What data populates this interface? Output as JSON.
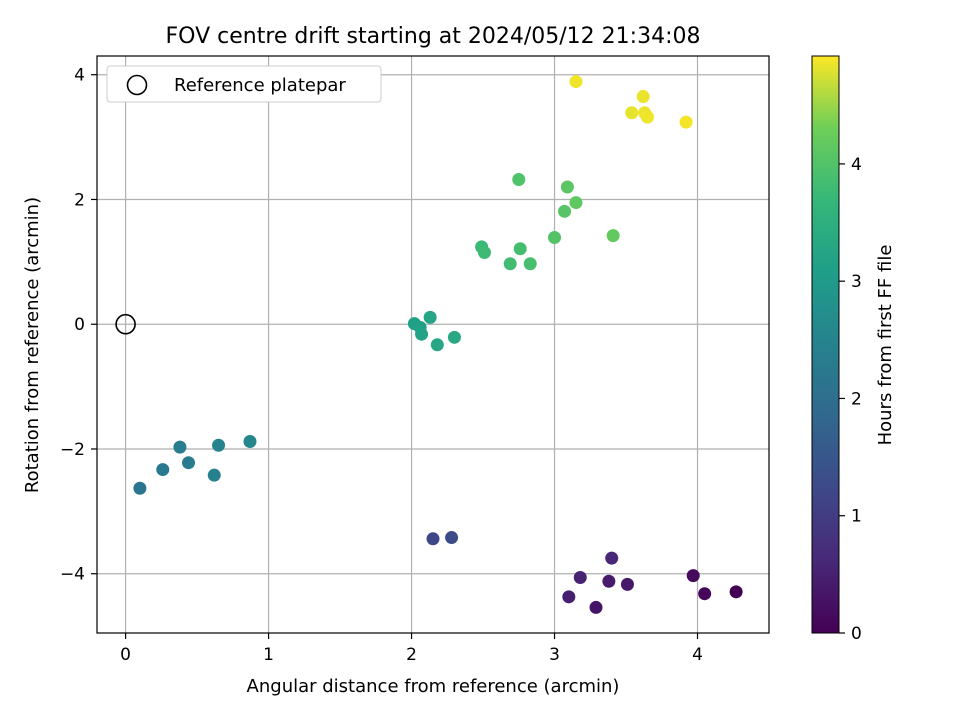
{
  "chart_data": {
    "type": "scatter",
    "title": "FOV centre drift starting at 2024/05/12 21:34:08",
    "xlabel": "Angular distance from reference (arcmin)",
    "ylabel": "Rotation from reference (arcmin)",
    "xlim": [
      -0.2,
      4.5
    ],
    "ylim": [
      -4.95,
      4.3
    ],
    "xticks": [
      0,
      1,
      2,
      3,
      4
    ],
    "yticks": [
      -4,
      -2,
      0,
      2,
      4
    ],
    "grid": true,
    "legend": {
      "placement": "top-left",
      "entries": [
        "Reference platepar"
      ]
    },
    "reference_point": {
      "x": 0,
      "y": 0,
      "label": "Reference platepar"
    },
    "colorbar": {
      "label": "Hours from first FF file",
      "range": [
        0,
        4.92
      ],
      "ticks": [
        0,
        1,
        2,
        3,
        4
      ],
      "colormap": "viridis"
    },
    "points": [
      {
        "x": 4.27,
        "y": -4.29,
        "hours": 0.02
      },
      {
        "x": 4.05,
        "y": -4.32,
        "hours": 0.08
      },
      {
        "x": 3.97,
        "y": -4.03,
        "hours": 0.14
      },
      {
        "x": 3.29,
        "y": -4.54,
        "hours": 0.3
      },
      {
        "x": 3.51,
        "y": -4.17,
        "hours": 0.36
      },
      {
        "x": 3.38,
        "y": -4.12,
        "hours": 0.42
      },
      {
        "x": 3.1,
        "y": -4.37,
        "hours": 0.48
      },
      {
        "x": 3.18,
        "y": -4.06,
        "hours": 0.54
      },
      {
        "x": 3.4,
        "y": -3.75,
        "hours": 0.6
      },
      {
        "x": 2.15,
        "y": -3.44,
        "hours": 1.22
      },
      {
        "x": 2.28,
        "y": -3.42,
        "hours": 1.28
      },
      {
        "x": 0.1,
        "y": -2.63,
        "hours": 2.18
      },
      {
        "x": 0.26,
        "y": -2.33,
        "hours": 2.24
      },
      {
        "x": 0.44,
        "y": -2.22,
        "hours": 2.3
      },
      {
        "x": 0.38,
        "y": -1.97,
        "hours": 2.36
      },
      {
        "x": 0.62,
        "y": -2.42,
        "hours": 2.42
      },
      {
        "x": 0.65,
        "y": -1.94,
        "hours": 2.48
      },
      {
        "x": 0.87,
        "y": -1.88,
        "hours": 2.54
      },
      {
        "x": 2.02,
        "y": 0.01,
        "hours": 3.12
      },
      {
        "x": 2.06,
        "y": -0.05,
        "hours": 3.16
      },
      {
        "x": 2.07,
        "y": -0.16,
        "hours": 3.2
      },
      {
        "x": 2.13,
        "y": 0.11,
        "hours": 3.24
      },
      {
        "x": 2.18,
        "y": -0.33,
        "hours": 3.28
      },
      {
        "x": 2.3,
        "y": -0.21,
        "hours": 3.32
      },
      {
        "x": 2.49,
        "y": 1.24,
        "hours": 3.74
      },
      {
        "x": 2.51,
        "y": 1.15,
        "hours": 3.78
      },
      {
        "x": 2.69,
        "y": 0.97,
        "hours": 3.82
      },
      {
        "x": 2.76,
        "y": 1.21,
        "hours": 3.86
      },
      {
        "x": 2.83,
        "y": 0.97,
        "hours": 3.9
      },
      {
        "x": 2.75,
        "y": 2.32,
        "hours": 3.98
      },
      {
        "x": 3.0,
        "y": 1.39,
        "hours": 4.02
      },
      {
        "x": 3.07,
        "y": 1.81,
        "hours": 4.06
      },
      {
        "x": 3.09,
        "y": 2.2,
        "hours": 4.1
      },
      {
        "x": 3.15,
        "y": 1.95,
        "hours": 4.14
      },
      {
        "x": 3.41,
        "y": 1.42,
        "hours": 4.18
      },
      {
        "x": 3.15,
        "y": 3.89,
        "hours": 4.86
      },
      {
        "x": 3.54,
        "y": 3.39,
        "hours": 4.82
      },
      {
        "x": 3.62,
        "y": 3.65,
        "hours": 4.84
      },
      {
        "x": 3.63,
        "y": 3.39,
        "hours": 4.85
      },
      {
        "x": 3.65,
        "y": 3.32,
        "hours": 4.86
      },
      {
        "x": 3.92,
        "y": 3.24,
        "hours": 4.88
      }
    ]
  }
}
